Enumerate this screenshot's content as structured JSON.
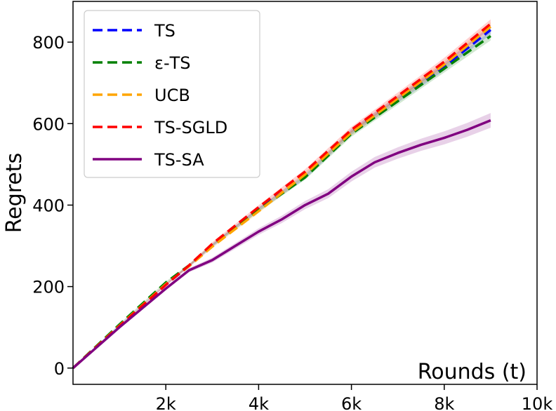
{
  "chart_data": {
    "type": "line",
    "xlabel": "Rounds (t)",
    "ylabel": "Regrets",
    "xlim": [
      0,
      10000
    ],
    "ylim": [
      -40,
      900
    ],
    "xticks": [
      {
        "value": 2000,
        "label": "2k"
      },
      {
        "value": 4000,
        "label": "4k"
      },
      {
        "value": 6000,
        "label": "6k"
      },
      {
        "value": 8000,
        "label": "8k"
      },
      {
        "value": 10000,
        "label": "10k"
      }
    ],
    "yticks": [
      {
        "value": 0,
        "label": "0"
      },
      {
        "value": 200,
        "label": "200"
      },
      {
        "value": 400,
        "label": "400"
      },
      {
        "value": 600,
        "label": "600"
      },
      {
        "value": 800,
        "label": "800"
      }
    ],
    "grid": false,
    "legend_position": "top-left",
    "series": [
      {
        "name": "TS",
        "color": "#0000ff",
        "style": "dashed",
        "x": [
          0,
          1000,
          2000,
          2500,
          3000,
          4000,
          5000,
          6000,
          7000,
          8000,
          9000
        ],
        "y": [
          0,
          105,
          205,
          250,
          300,
          390,
          470,
          580,
          660,
          740,
          830
        ],
        "band": 12
      },
      {
        "name": "ε-TS",
        "color": "#008000",
        "style": "dashed",
        "x": [
          0,
          1000,
          2000,
          2500,
          3000,
          4000,
          5000,
          6000,
          7000,
          8000,
          9000
        ],
        "y": [
          0,
          107,
          210,
          252,
          302,
          388,
          468,
          575,
          655,
          735,
          815
        ],
        "band": 12
      },
      {
        "name": "UCB",
        "color": "#ffa500",
        "style": "dashed",
        "x": [
          0,
          1000,
          2000,
          2500,
          3000,
          4000,
          5000,
          6000,
          7000,
          8000,
          9000
        ],
        "y": [
          0,
          104,
          206,
          250,
          298,
          385,
          475,
          578,
          662,
          745,
          838
        ],
        "band": 12
      },
      {
        "name": "TS-SGLD",
        "color": "#ff0000",
        "style": "dashed",
        "x": [
          0,
          1000,
          2000,
          2500,
          3000,
          4000,
          5000,
          6000,
          7000,
          8000,
          9000
        ],
        "y": [
          0,
          103,
          204,
          252,
          305,
          395,
          482,
          585,
          668,
          752,
          845
        ],
        "band": 12
      },
      {
        "name": "TS-SA",
        "color": "#800080",
        "style": "solid",
        "x": [
          0,
          1000,
          2000,
          2500,
          3000,
          3500,
          4000,
          4500,
          5000,
          5500,
          6000,
          6500,
          7000,
          7500,
          8000,
          8500,
          9000
        ],
        "y": [
          0,
          100,
          195,
          240,
          265,
          300,
          335,
          365,
          400,
          428,
          470,
          505,
          528,
          548,
          565,
          585,
          608
        ],
        "band": 20
      }
    ]
  }
}
